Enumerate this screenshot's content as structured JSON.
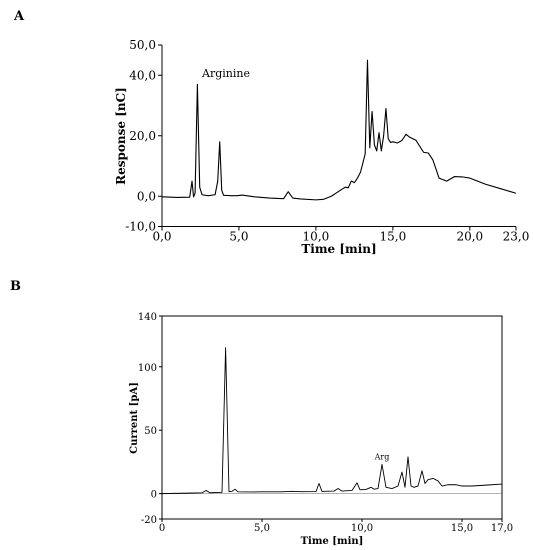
{
  "panels": [
    {
      "label": "A"
    },
    {
      "label": "B"
    }
  ],
  "chart_data": [
    {
      "type": "line",
      "xlabel": "Time [min]",
      "ylabel": "Response [nC]",
      "xlim": [
        0,
        23
      ],
      "ylim": [
        -10,
        50
      ],
      "x_tick_labels": [
        "0,0",
        "5,0",
        "10,0",
        "15,0",
        "20,0",
        "23,0"
      ],
      "x_tick_values": [
        0,
        5,
        10,
        15,
        20,
        23
      ],
      "y_tick_labels": [
        "-10,0",
        "0,0",
        "20,0",
        "40,0",
        "50,0"
      ],
      "y_tick_values": [
        -10,
        0,
        20,
        40,
        50
      ],
      "annotations": [
        {
          "text": "Arginine",
          "x": 2.6,
          "y": 39.5
        }
      ],
      "grid": false,
      "series": [
        {
          "x": [
            0,
            1.0,
            1.8,
            1.95,
            2.05,
            2.15,
            2.3,
            2.45,
            2.6,
            3.0,
            3.45,
            3.62,
            3.75,
            3.88,
            4.0,
            4.5,
            4.9,
            5.2,
            6.0,
            7.0,
            7.9,
            8.2,
            8.5,
            9.0,
            10.0,
            10.5,
            11.0,
            11.3,
            11.6,
            11.9,
            12.1,
            12.3,
            12.5,
            12.7,
            12.9,
            13.1,
            13.2,
            13.35,
            13.5,
            13.65,
            13.8,
            13.95,
            14.1,
            14.25,
            14.4,
            14.55,
            14.7,
            14.85,
            15.0,
            15.3,
            15.6,
            15.85,
            16.1,
            16.5,
            17.0,
            17.3,
            17.6,
            18.0,
            18.5,
            19.0,
            19.5,
            20.0,
            21.0,
            22.0,
            23.0
          ],
          "y": [
            -0.2,
            -0.4,
            -0.3,
            5,
            -0.2,
            1,
            37,
            3,
            0.5,
            0.2,
            0.5,
            5,
            18,
            2,
            0.3,
            0.2,
            0.2,
            0.4,
            -0.2,
            -0.6,
            -0.8,
            1.5,
            -0.6,
            -0.9,
            -1.2,
            -1.0,
            0,
            1,
            2,
            3,
            2.8,
            5,
            4.5,
            6,
            8,
            12,
            14,
            45,
            16,
            28,
            17,
            15,
            21,
            15,
            20,
            29,
            19,
            17.8,
            18,
            17.6,
            18.5,
            20.5,
            19.5,
            18.5,
            14.5,
            14.3,
            12,
            6,
            5,
            6.5,
            6.4,
            6,
            4,
            2.5,
            1
          ]
        }
      ]
    },
    {
      "type": "line",
      "xlabel": "Time [min]",
      "ylabel": "Current [pA]",
      "xlim": [
        0,
        17
      ],
      "ylim": [
        -20,
        140
      ],
      "x_tick_labels": [
        "0",
        "5,0",
        "10,0",
        "15,0",
        "17,0"
      ],
      "x_tick_values": [
        0,
        5,
        10,
        15,
        17
      ],
      "y_tick_labels": [
        "-20",
        "0",
        "50",
        "100",
        "140"
      ],
      "y_tick_values": [
        -20,
        0,
        50,
        100,
        140
      ],
      "annotations": [
        {
          "text": "Arg",
          "x": 11.0,
          "y": 27
        }
      ],
      "grid": false,
      "series": [
        {
          "x": [
            0,
            1.0,
            2.0,
            2.2,
            2.4,
            2.8,
            3.0,
            3.18,
            3.35,
            3.5,
            3.65,
            3.8,
            4.5,
            5.0,
            6.0,
            6.5,
            7.0,
            7.7,
            7.85,
            8.0,
            8.3,
            8.6,
            8.8,
            9.0,
            9.5,
            9.75,
            9.9,
            10.2,
            10.45,
            10.6,
            10.8,
            11.0,
            11.2,
            11.5,
            11.8,
            12.0,
            12.15,
            12.3,
            12.45,
            12.6,
            12.8,
            13.0,
            13.15,
            13.3,
            13.55,
            13.8,
            14.0,
            14.3,
            14.7,
            15.0,
            15.5,
            16.0,
            16.5,
            17.0
          ],
          "y": [
            0,
            0.3,
            0.6,
            2.5,
            0.7,
            0.9,
            1.0,
            115,
            1.5,
            1.8,
            3.5,
            1.4,
            1.3,
            1.4,
            1.4,
            1.8,
            1.5,
            1.6,
            8,
            1.7,
            1.9,
            2.0,
            4,
            2.0,
            2.5,
            8.5,
            3,
            3.3,
            5,
            3.5,
            4,
            23,
            5,
            4,
            6,
            17,
            5,
            29,
            6,
            5,
            6,
            18,
            8,
            11,
            12,
            10,
            6,
            7,
            7,
            6,
            6,
            6.5,
            7,
            7.5
          ]
        }
      ]
    }
  ]
}
